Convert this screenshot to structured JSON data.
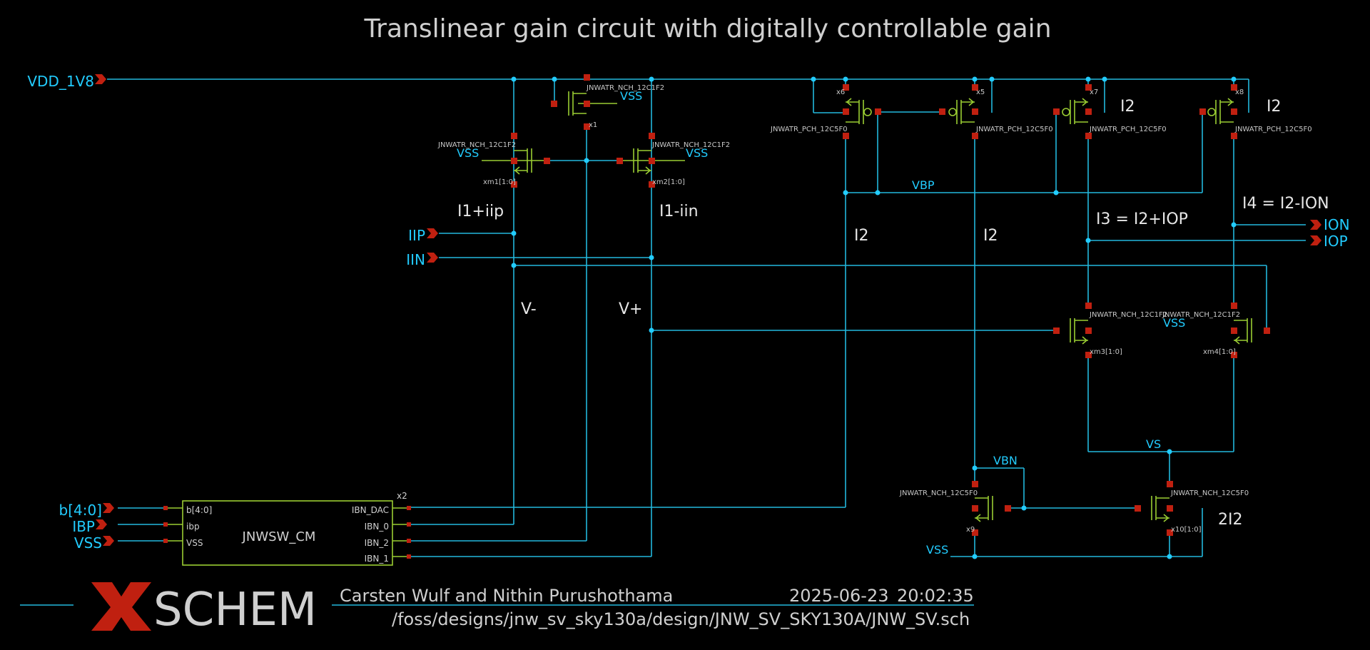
{
  "title": "Translinear gain circuit with digitally controllable gain",
  "colors": {
    "wire": "#22b8dd",
    "device": "#9acd32",
    "pin": "#c02010",
    "label": "#22ccff",
    "text": "#cfcfcf"
  },
  "ports": {
    "vdd": "VDD_1V8",
    "iip": "IIP",
    "iin": "IIN",
    "b": "b[4:0]",
    "ibp": "IBP",
    "vss": "VSS",
    "ion": "ION",
    "iop": "IOP"
  },
  "net_labels": {
    "vss1": "VSS",
    "vss2": "VSS",
    "vss3": "VSS",
    "vss4": "VSS",
    "vss5": "VSS",
    "vbp": "VBP",
    "vs": "VS",
    "vbn": "VBN"
  },
  "annotations": {
    "i1iip": "I1+iip",
    "i1iin": "I1-iin",
    "vminus": "V-",
    "vplus": "V+",
    "i2a": "I2",
    "i2b": "I2",
    "i2c": "I2",
    "i2d": "I2",
    "i3": "I3 = I2+IOP",
    "i4": "I4 = I2-ION",
    "two_i2": "2I2"
  },
  "devices": {
    "x1_type": "JNWATR_NCH_12C1F2",
    "x1_name": "x1",
    "xm1_type": "JNWATR_NCH_12C1F2",
    "xm1_name": "xm1[1:0]",
    "xm2_type": "JNWATR_NCH_12C1F2",
    "xm2_name": "xm2[1:0]",
    "x6_type": "JNWATR_PCH_12C5F0",
    "x6_name": "x6",
    "x5_type": "JNWATR_PCH_12C5F0",
    "x5_name": "x5",
    "x7_type": "JNWATR_PCH_12C5F0",
    "x7_name": "x7",
    "x8_type": "JNWATR_PCH_12C5F0",
    "x8_name": "x8",
    "xm3_type": "JNWATR_NCH_12C1F2",
    "xm3_name": "xm3[1:0]",
    "xm4_type": "JNWATR_NCH_12C1F2",
    "xm4_name": "xm4[1:0]",
    "x9_type": "JNWATR_NCH_12C5F0",
    "x9_name": "x9",
    "x10_type": "JNWATR_NCH_12C5F0",
    "x10_name": "x10[1:0]"
  },
  "block": {
    "instance": "x2",
    "name": "JNWSW_CM",
    "pin_b": "b[4:0]",
    "pin_ibp": "ibp",
    "pin_vss": "VSS",
    "pin_ibn_dac": "IBN_DAC",
    "pin_ibn_0": "IBN_0",
    "pin_ibn_2": "IBN_2",
    "pin_ibn_1": "IBN_1"
  },
  "footer": {
    "logo_text": "SCHEM",
    "authors": "Carsten Wulf and Nithin Purushothama",
    "date": "2025-06-23",
    "time": "20:02:35",
    "path": "/foss/designs/jnw_sv_sky130a/design/JNW_SV_SKY130A/JNW_SV.sch"
  }
}
